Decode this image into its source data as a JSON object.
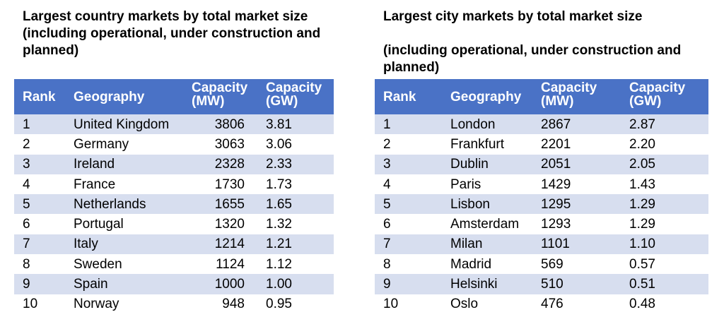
{
  "left": {
    "title_line1": "Largest country markets by total market size",
    "title_line2": "(including operational, under construction and planned)",
    "headers": [
      "Rank",
      "Geography",
      "Capacity (MW)",
      "Capacity (GW)"
    ],
    "rows": [
      [
        "1",
        "United Kingdom",
        "3806",
        "3.81"
      ],
      [
        "2",
        "Germany",
        "3063",
        "3.06"
      ],
      [
        "3",
        "Ireland",
        "2328",
        "2.33"
      ],
      [
        "4",
        "France",
        "1730",
        "1.73"
      ],
      [
        "5",
        "Netherlands",
        "1655",
        "1.65"
      ],
      [
        "6",
        "Portugal",
        "1320",
        "1.32"
      ],
      [
        "7",
        "Italy",
        "1214",
        "1.21"
      ],
      [
        "8",
        "Sweden",
        "1124",
        "1.12"
      ],
      [
        "9",
        "Spain",
        "1000",
        "1.00"
      ],
      [
        "10",
        "Norway",
        "948",
        "0.95"
      ]
    ]
  },
  "right": {
    "title_line1": "Largest city markets by total market size",
    "title_line2": "(including operational, under construction and planned)",
    "headers": [
      "Rank",
      "Geography",
      "Capacity (MW)",
      "Capacity (GW)"
    ],
    "rows": [
      [
        "1",
        "London",
        "2867",
        "2.87"
      ],
      [
        "2",
        "Frankfurt",
        "2201",
        "2.20"
      ],
      [
        "3",
        "Dublin",
        "2051",
        "2.05"
      ],
      [
        "4",
        "Paris",
        "1429",
        "1.43"
      ],
      [
        "5",
        "Lisbon",
        "1295",
        "1.29"
      ],
      [
        "6",
        "Amsterdam",
        "1293",
        "1.29"
      ],
      [
        "7",
        "Milan",
        "1101",
        "1.10"
      ],
      [
        "8",
        "Madrid",
        "569",
        "0.57"
      ],
      [
        "9",
        "Helsinki",
        "510",
        "0.51"
      ],
      [
        "10",
        "Oslo",
        "476",
        "0.48"
      ]
    ]
  },
  "colors": {
    "header_bg": "#4a72c6",
    "band_bg": "#d7deef"
  }
}
